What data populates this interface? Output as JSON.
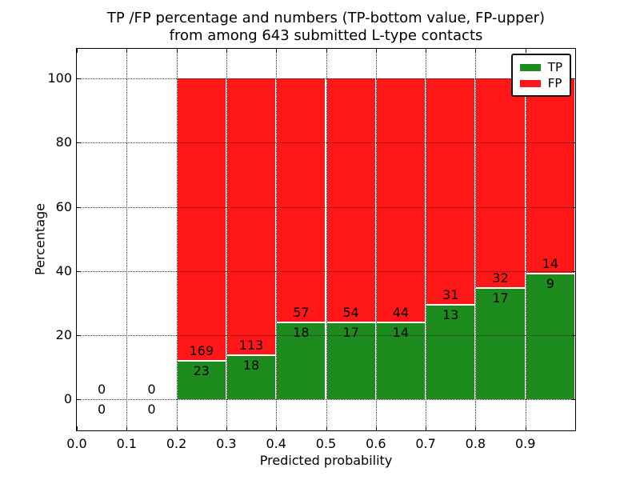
{
  "title": {
    "line1": "TP /FP percentage and numbers (TP-bottom value, FP-upper)",
    "line2": "from among 643 submitted L-type contacts"
  },
  "axes": {
    "ylabel": "Percentage",
    "xlabel": "Predicted probability"
  },
  "legend": {
    "items": [
      {
        "label": "TP",
        "color": "#1e8b1e"
      },
      {
        "label": "FP",
        "color": "#ff1717"
      }
    ]
  },
  "chart_data": {
    "type": "bar",
    "stacked": true,
    "title": "TP /FP percentage and numbers (TP-bottom value, FP-upper) from among 643 submitted L-type contacts",
    "xlabel": "Predicted probability",
    "ylabel": "Percentage",
    "xlim": [
      0.0,
      1.0
    ],
    "ylim": [
      -9.6,
      109.2
    ],
    "xticks": [
      "0.0",
      "0.1",
      "0.2",
      "0.3",
      "0.4",
      "0.5",
      "0.6",
      "0.7",
      "0.8",
      "0.9"
    ],
    "yticks": [
      "0",
      "20",
      "40",
      "60",
      "80",
      "100"
    ],
    "grid": "dotted, both axes, drawn above bars",
    "legend_position": "upper right",
    "bin_width": 0.1,
    "bin_starts": [
      0.0,
      0.1,
      0.2,
      0.3,
      0.4,
      0.5,
      0.6,
      0.7,
      0.8,
      0.9
    ],
    "bar_height_mode": "TP percent of bin total at bottom, FP stacked to 100%; empty bins show 0/0 labels at baseline",
    "series": [
      {
        "name": "TP",
        "color": "#1e8b1e",
        "counts": [
          0,
          0,
          23,
          18,
          18,
          17,
          14,
          13,
          17,
          9
        ]
      },
      {
        "name": "FP",
        "color": "#ff1717",
        "counts": [
          0,
          0,
          169,
          113,
          57,
          54,
          44,
          31,
          32,
          14
        ]
      }
    ],
    "tp_percent_by_bin": [
      0,
      0,
      11.98,
      13.74,
      24.0,
      23.94,
      24.14,
      29.55,
      34.69,
      39.13
    ],
    "total_contacts": 643
  }
}
